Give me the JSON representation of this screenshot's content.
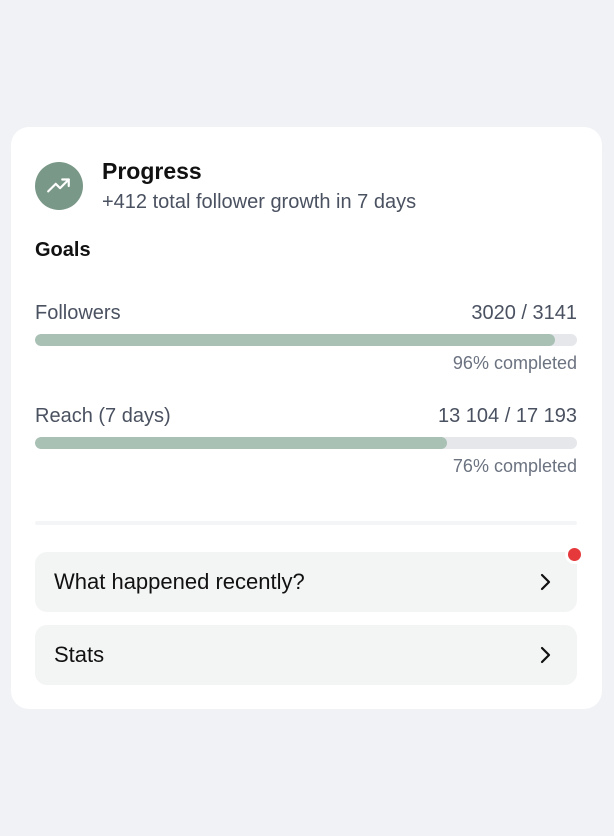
{
  "header": {
    "icon": "trending-up-icon",
    "title": "Progress",
    "subtitle": "+412 total follower growth in 7 days"
  },
  "goals": {
    "heading": "Goals",
    "items": [
      {
        "label": "Followers",
        "value": "3020 / 3141",
        "percent": 96,
        "caption": "96% completed"
      },
      {
        "label": "Reach (7 days)",
        "value": "13 104 / 17 193",
        "percent": 76,
        "caption": "76% completed"
      }
    ]
  },
  "nav": [
    {
      "label": "What happened recently?",
      "icon": "chevron-right-icon",
      "has_notification": true
    },
    {
      "label": "Stats",
      "icon": "chevron-right-icon",
      "has_notification": false
    }
  ],
  "colors": {
    "accent": "#7a9888",
    "bar_fill": "#a9c0b4",
    "notification": "#e5393c"
  }
}
